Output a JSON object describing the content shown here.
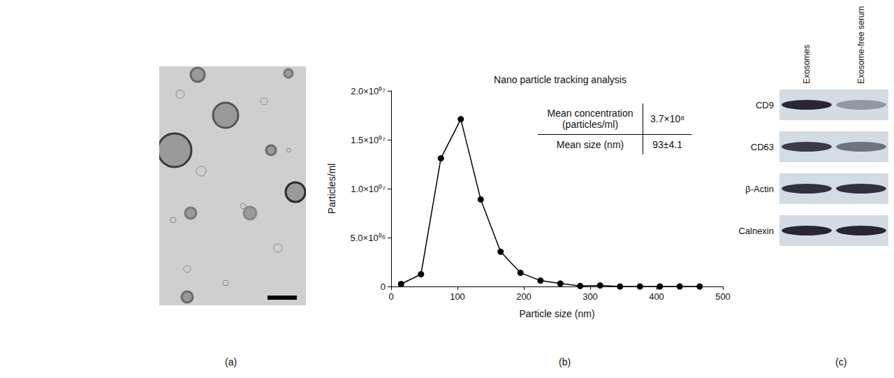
{
  "chart_data": {
    "type": "line",
    "panel": "(b)",
    "title": "Nano particle tracking analysis",
    "x_label": "Particle size (nm)",
    "y_label": "Particles/ml",
    "x": [
      15,
      45,
      75,
      105,
      135,
      165,
      195,
      225,
      255,
      285,
      315,
      345,
      375,
      405,
      435,
      465
    ],
    "series": [
      {
        "name": "Particles/ml",
        "color": "#000000",
        "marker": "circle",
        "line_style": "solid",
        "values": [
          250000,
          1250000,
          13100000,
          17100000,
          8900000,
          3550000,
          1400000,
          600000,
          300000,
          50000,
          100000,
          0,
          0,
          0,
          0,
          0
        ]
      }
    ],
    "xlim": [
      0,
      500
    ],
    "xticks": [
      0,
      100,
      200,
      300,
      400,
      500
    ],
    "ylim": [
      0,
      20000000
    ],
    "yticks": [
      0,
      {
        "value": 5000000,
        "label": "5.0×10⁰⁶"
      },
      {
        "value": 10000000,
        "label": "1.0×10⁰⁷"
      },
      {
        "value": 15000000,
        "label": "1.5×10⁰⁷"
      },
      {
        "value": 20000000,
        "label": "2.0×10⁰⁷"
      }
    ],
    "grid": false,
    "table": {
      "rows": [
        [
          "Mean concentration (particles/ml)",
          "3.7×10⁸"
        ],
        [
          "Mean size (nm)",
          "93±4.1"
        ]
      ]
    }
  },
  "image": {
    "panel": "(a)"
  },
  "blot": {
    "panel": "(c)",
    "lanes": [
      "Exosomes",
      "Exosome-free serum"
    ],
    "rows": [
      {
        "label": "CD9",
        "intensity": [
          0.95,
          0.35
        ]
      },
      {
        "label": "CD63",
        "intensity": [
          0.85,
          0.55
        ]
      },
      {
        "label": "β-Actin",
        "intensity": [
          0.9,
          0.9
        ]
      },
      {
        "label": "Calnexin",
        "intensity": [
          0.95,
          0.95
        ]
      }
    ]
  }
}
